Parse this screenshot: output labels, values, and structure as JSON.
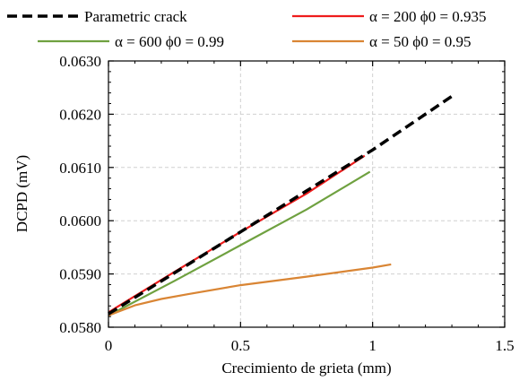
{
  "chart_data": {
    "type": "line",
    "xlabel": "Crecimiento de grieta (mm)",
    "ylabel": "DCPD (mV)",
    "xlim": [
      0,
      1.5
    ],
    "ylim": [
      0.058,
      0.063
    ],
    "x_ticks": [
      "0",
      "0.5",
      "1",
      "1.5"
    ],
    "y_ticks": [
      "0.0580",
      "0.0590",
      "0.0600",
      "0.0610",
      "0.0620",
      "0.0630"
    ],
    "grid": true,
    "legend_position": "top",
    "series": [
      {
        "name": "Parametric crack",
        "color": "#000000",
        "style": "dashed",
        "x": [
          0,
          0.25,
          0.5,
          0.75,
          1.0,
          1.31
        ],
        "y": [
          0.05825,
          0.05902,
          0.05979,
          0.06056,
          0.06133,
          0.06237
        ]
      },
      {
        "name": "α = 200 ϕ0 = 0.935",
        "color": "#ee1c1c",
        "style": "solid",
        "x": [
          0,
          0.25,
          0.5,
          0.75,
          0.97
        ],
        "y": [
          0.05828,
          0.05904,
          0.05979,
          0.06051,
          0.06122
        ]
      },
      {
        "name": "α = 600 ϕ0 = 0.99",
        "color": "#6fa140",
        "style": "solid",
        "x": [
          0,
          0.25,
          0.5,
          0.75,
          0.99
        ],
        "y": [
          0.05822,
          0.05887,
          0.05954,
          0.06021,
          0.06092
        ]
      },
      {
        "name": "α = 50 ϕ0 = 0.95",
        "color": "#d98534",
        "style": "solid",
        "x": [
          0,
          0.1,
          0.2,
          0.3,
          0.5,
          0.75,
          1.0,
          1.07
        ],
        "y": [
          0.05822,
          0.05841,
          0.05853,
          0.05862,
          0.05879,
          0.05895,
          0.05912,
          0.05918
        ]
      }
    ]
  }
}
